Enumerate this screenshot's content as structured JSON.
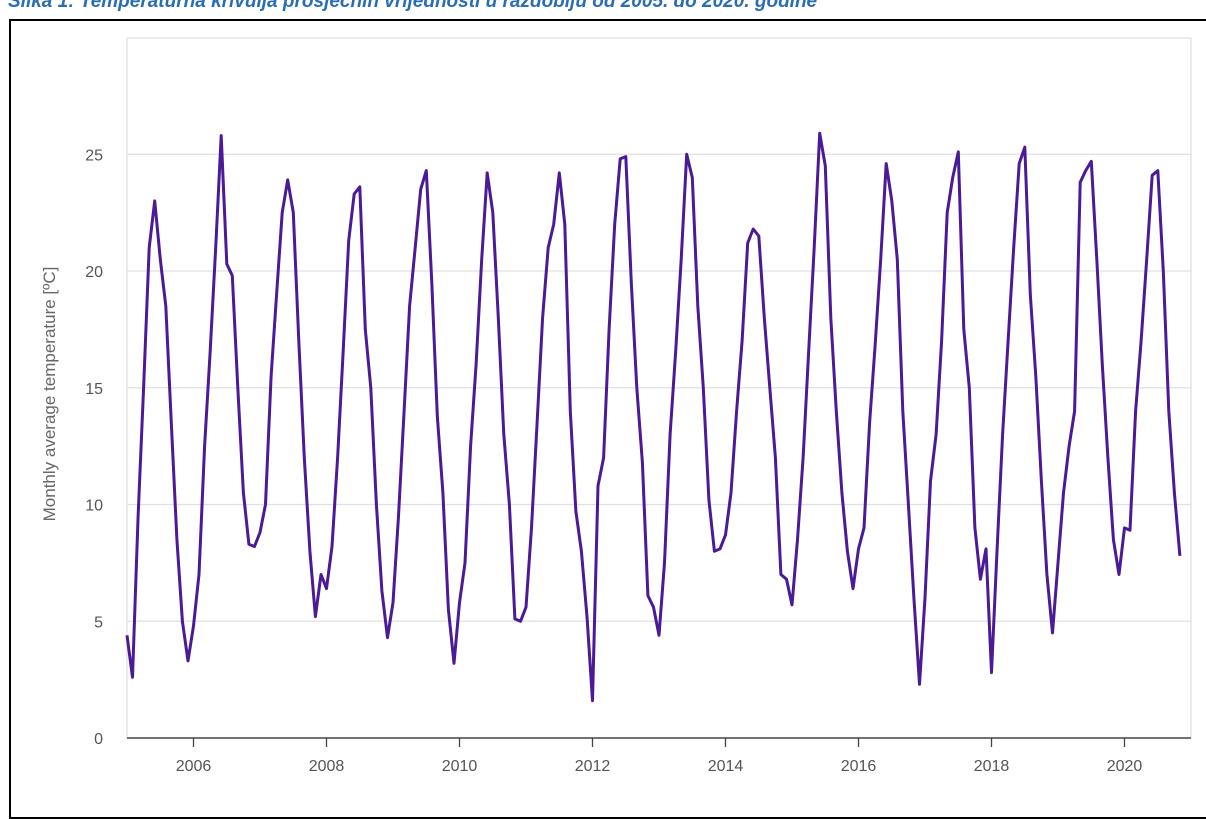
{
  "caption": "Slika 1: Temperaturna krivulja prosječnih vrijednosti u razdoblju od 2005. do 2020. godine",
  "colors": {
    "caption": "#2a6db5",
    "line": "#4b1a96",
    "grid": "#e0e0e0",
    "axis_text": "#555555"
  },
  "chart_data": {
    "type": "line",
    "title": "",
    "xlabel": "",
    "ylabel": "Monthly average temperature [ºC]",
    "xlim": [
      2005.0,
      2021.0
    ],
    "ylim": [
      0,
      30
    ],
    "grid": true,
    "x_ticks": [
      "2006",
      "2008",
      "2010",
      "2012",
      "2014",
      "2016",
      "2018",
      "2020"
    ],
    "y_ticks": [
      "0",
      "5",
      "10",
      "15",
      "20",
      "25"
    ],
    "series": [
      {
        "x_start": "2005-01",
        "x_step": "1 month",
        "values": [
          4.4,
          2.6,
          9.5,
          15.0,
          21.0,
          23.0,
          20.5,
          18.5,
          13.5,
          8.5,
          5.0,
          3.3,
          4.8,
          7.0,
          12.5,
          16.5,
          21.0,
          25.8,
          20.3,
          19.8,
          15.0,
          10.5,
          8.3,
          8.2,
          8.8,
          10.0,
          15.5,
          19.0,
          22.5,
          23.9,
          22.5,
          17.0,
          12.0,
          8.0,
          5.2,
          7.0,
          6.4,
          8.2,
          12.0,
          16.5,
          21.3,
          23.3,
          23.6,
          17.5,
          15.0,
          10.0,
          6.3,
          4.3,
          5.8,
          9.5,
          14.0,
          18.5,
          21.0,
          23.5,
          24.3,
          19.5,
          13.8,
          10.5,
          5.5,
          3.2,
          5.8,
          7.5,
          12.5,
          16.0,
          20.5,
          24.2,
          22.5,
          18.0,
          13.0,
          10.0,
          5.1,
          5.0,
          5.6,
          9.0,
          13.5,
          18.0,
          21.0,
          22.0,
          24.2,
          22.0,
          14.0,
          9.7,
          8.0,
          5.2,
          1.6,
          10.8,
          12.0,
          17.5,
          22.0,
          24.8,
          24.9,
          19.5,
          15.0,
          11.8,
          6.1,
          5.6,
          4.4,
          7.5,
          13.0,
          16.5,
          20.5,
          25.0,
          24.0,
          18.5,
          15.0,
          10.2,
          8.0,
          8.1,
          8.7,
          10.5,
          14.0,
          17.0,
          21.2,
          21.8,
          21.5,
          18.0,
          15.0,
          12.0,
          7.0,
          6.8,
          5.7,
          8.5,
          12.0,
          16.5,
          21.0,
          25.9,
          24.5,
          18.0,
          14.0,
          10.5,
          8.0,
          6.4,
          8.1,
          9.0,
          13.5,
          16.8,
          20.5,
          24.6,
          23.0,
          20.5,
          14.0,
          10.0,
          6.0,
          2.3,
          6.0,
          11.0,
          13.0,
          17.0,
          22.5,
          24.0,
          25.1,
          17.5,
          15.0,
          9.0,
          6.8,
          8.1,
          2.8,
          8.0,
          13.0,
          17.0,
          21.0,
          24.6,
          25.3,
          19.0,
          15.5,
          11.0,
          7.0,
          4.5,
          7.5,
          10.5,
          12.5,
          14.0,
          23.8,
          24.3,
          24.7,
          20.5,
          16.0,
          12.0,
          8.5,
          7.0,
          9.0,
          8.9,
          14.0,
          17.0,
          20.5,
          24.1,
          24.3,
          20.0,
          14.0,
          10.5,
          7.8
        ]
      }
    ]
  }
}
